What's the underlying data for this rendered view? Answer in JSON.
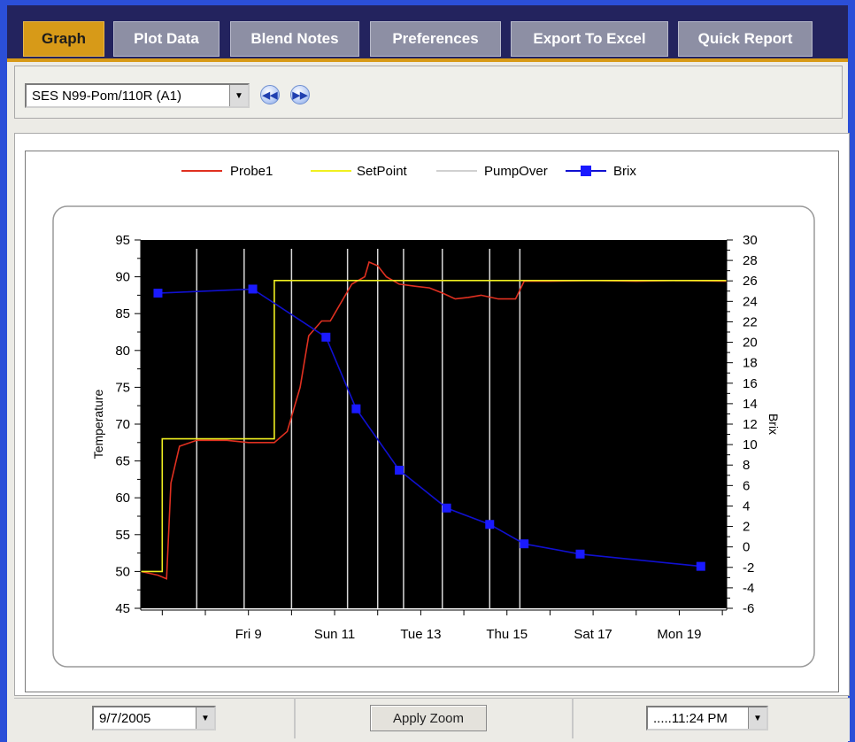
{
  "tabs": [
    {
      "label": "Graph",
      "active": true
    },
    {
      "label": "Plot Data",
      "active": false
    },
    {
      "label": "Blend Notes",
      "active": false
    },
    {
      "label": "Preferences",
      "active": false
    },
    {
      "label": "Export To Excel",
      "active": false
    },
    {
      "label": "Quick Report",
      "active": false
    }
  ],
  "toolbar": {
    "tank_select_value": "SES N99-Pom/110R (A1)",
    "prev_icon": "rewind-icon",
    "next_icon": "fast-forward-icon"
  },
  "legend": {
    "probe1": "Probe1",
    "setpoint": "SetPoint",
    "pumpover": "PumpOver",
    "brix": "Brix"
  },
  "colors": {
    "accent": "#d79a18",
    "tabbar_bg": "#23235e",
    "probe1": "#e03020",
    "setpoint": "#f0f020",
    "pumpover": "#d8d8d8",
    "brix": "#1010d0",
    "plot_bg": "#000000"
  },
  "bottom": {
    "start_date": "9/7/2005",
    "apply_zoom": "Apply Zoom",
    "end_time": ".....11:24 PM"
  },
  "chart_data": {
    "type": "line",
    "ylabel": "Temperature",
    "y2label": "Brix",
    "ylim": [
      45,
      95
    ],
    "y2lim": [
      -6,
      30
    ],
    "xlim": [
      6.5,
      20.1
    ],
    "x_unit": "day of Sep 2005",
    "yticks": [
      45,
      50,
      55,
      60,
      65,
      70,
      75,
      80,
      85,
      90,
      95
    ],
    "y2ticks": [
      -6,
      -4,
      -2,
      0,
      2,
      4,
      6,
      8,
      10,
      12,
      14,
      16,
      18,
      20,
      22,
      24,
      26,
      28,
      30
    ],
    "xticks": [
      {
        "x": 9,
        "label": "Fri 9"
      },
      {
        "x": 11,
        "label": "Sun 11"
      },
      {
        "x": 13,
        "label": "Tue 13"
      },
      {
        "x": 15,
        "label": "Thu 15"
      },
      {
        "x": 17,
        "label": "Sat 17"
      },
      {
        "x": 19,
        "label": "Mon 19"
      }
    ],
    "pumpover_x": [
      7.8,
      8.9,
      10.0,
      11.3,
      12.0,
      12.6,
      13.5,
      14.6,
      15.3
    ],
    "series": [
      {
        "name": "Probe1",
        "axis": "left",
        "points": [
          [
            6.5,
            50
          ],
          [
            6.9,
            49.5
          ],
          [
            7.1,
            49
          ],
          [
            7.2,
            62
          ],
          [
            7.4,
            67
          ],
          [
            7.8,
            67.8
          ],
          [
            8.5,
            67.8
          ],
          [
            9.0,
            67.5
          ],
          [
            9.6,
            67.5
          ],
          [
            9.9,
            69
          ],
          [
            10.2,
            75
          ],
          [
            10.4,
            82
          ],
          [
            10.7,
            84
          ],
          [
            10.9,
            84
          ],
          [
            11.1,
            86
          ],
          [
            11.4,
            89
          ],
          [
            11.7,
            90
          ],
          [
            11.8,
            92
          ],
          [
            12.0,
            91.5
          ],
          [
            12.2,
            90
          ],
          [
            12.5,
            89
          ],
          [
            12.9,
            88.7
          ],
          [
            13.2,
            88.5
          ],
          [
            13.5,
            87.8
          ],
          [
            13.8,
            87
          ],
          [
            14.1,
            87.2
          ],
          [
            14.4,
            87.5
          ],
          [
            14.8,
            87
          ],
          [
            15.2,
            87
          ],
          [
            15.4,
            89.4
          ],
          [
            16.0,
            89.4
          ],
          [
            17.0,
            89.5
          ],
          [
            18.0,
            89.4
          ],
          [
            19.0,
            89.5
          ],
          [
            20.1,
            89.4
          ]
        ]
      },
      {
        "name": "SetPoint",
        "axis": "left",
        "points": [
          [
            6.5,
            50
          ],
          [
            7.0,
            50
          ],
          [
            7.0,
            68
          ],
          [
            9.6,
            68
          ],
          [
            9.6,
            89.5
          ],
          [
            20.1,
            89.5
          ]
        ]
      },
      {
        "name": "Brix",
        "axis": "right",
        "points": [
          [
            6.9,
            24.8
          ],
          [
            9.1,
            25.2
          ],
          [
            10.8,
            20.5
          ],
          [
            11.5,
            13.5
          ],
          [
            12.5,
            7.5
          ],
          [
            13.6,
            3.8
          ],
          [
            14.6,
            2.2
          ],
          [
            15.4,
            0.3
          ],
          [
            16.7,
            -0.7
          ],
          [
            19.5,
            -1.9
          ]
        ]
      }
    ]
  }
}
